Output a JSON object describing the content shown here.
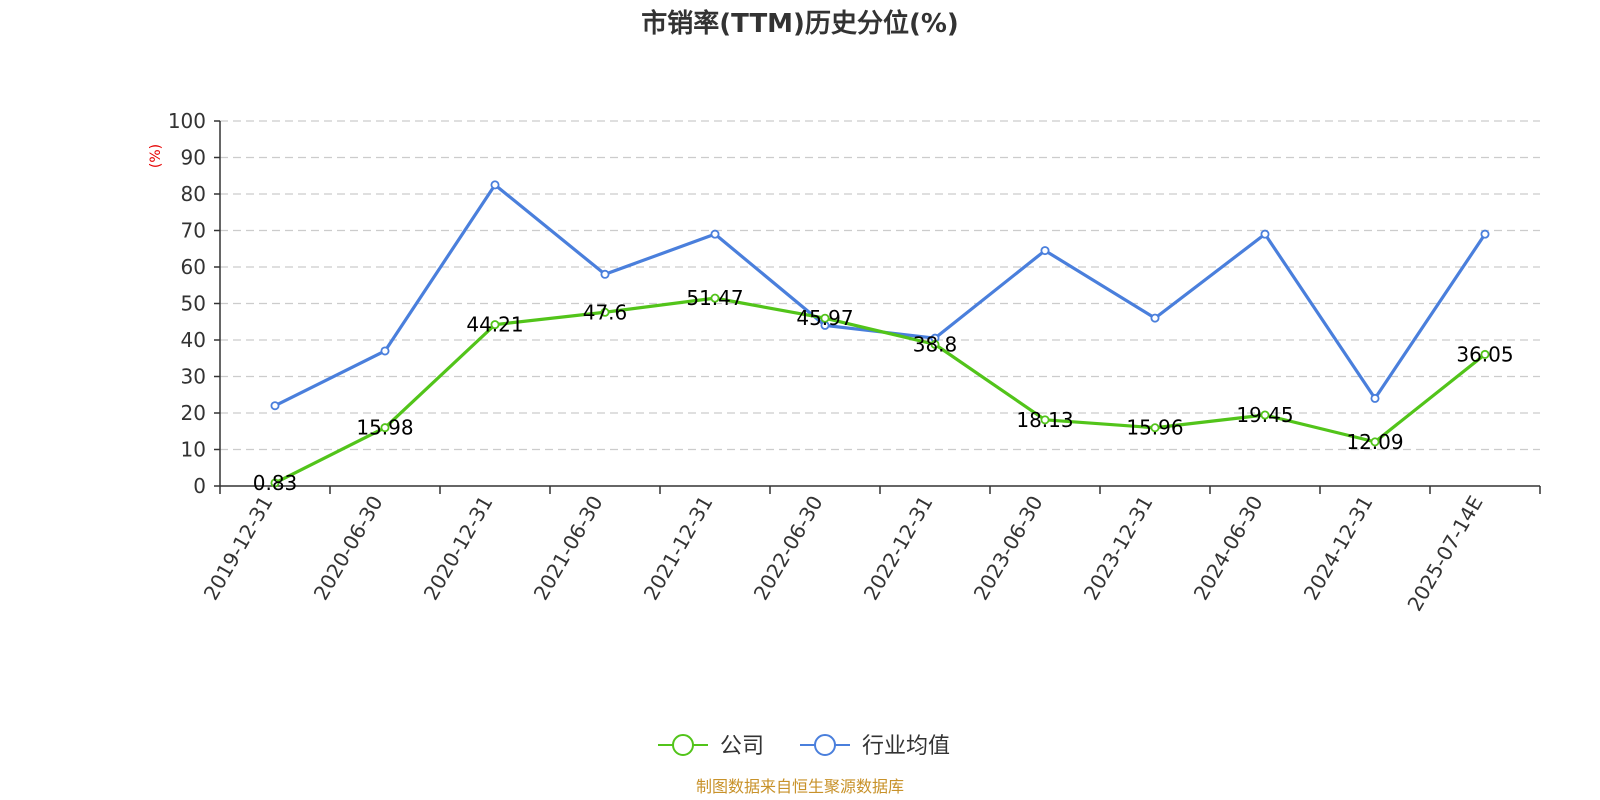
{
  "chart_data": {
    "type": "line",
    "title": "市销率(TTM)历史分位(%)",
    "ylabel": "(%)",
    "ylim": [
      0,
      100
    ],
    "yticks": [
      0,
      10,
      20,
      30,
      40,
      50,
      60,
      70,
      80,
      90,
      100
    ],
    "categories": [
      "2019-12-31",
      "2020-06-30",
      "2020-12-31",
      "2021-06-30",
      "2021-12-31",
      "2022-06-30",
      "2022-12-31",
      "2023-06-30",
      "2023-12-31",
      "2024-06-30",
      "2024-12-31",
      "2025-07-14E"
    ],
    "grid": "horizontal dashed",
    "legend_position": "bottom-center",
    "series": [
      {
        "name": "公司",
        "color": "#52c41a",
        "values": [
          0.83,
          15.98,
          44.21,
          47.6,
          51.47,
          45.97,
          38.8,
          18.13,
          15.96,
          19.45,
          12.09,
          36.05
        ],
        "labels": [
          "0.83",
          "15.98",
          "44.21",
          "47.6",
          "51.47",
          "45.97",
          "38.8",
          "18.13",
          "15.96",
          "19.45",
          "12.09",
          "36.05"
        ]
      },
      {
        "name": "行业均值",
        "color": "#4a7fdc",
        "values": [
          22,
          37,
          82.5,
          58,
          69,
          44,
          40.5,
          64.5,
          46,
          69,
          24,
          69
        ]
      }
    ]
  },
  "source": "制图数据来自恒生聚源数据库"
}
